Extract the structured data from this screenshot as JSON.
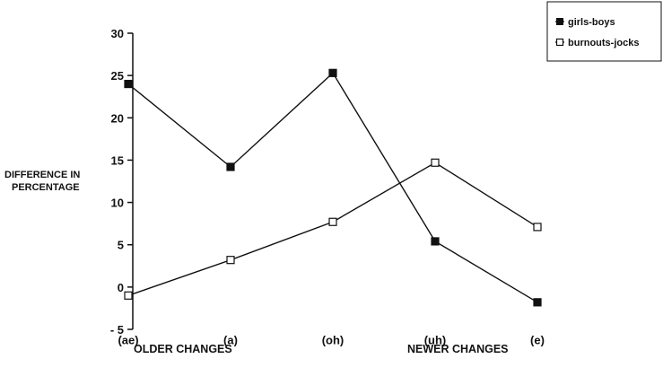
{
  "chart_data": {
    "type": "line",
    "categories": [
      "(ae)",
      "(a)",
      "(oh)",
      "(uh)",
      "(e)"
    ],
    "series": [
      {
        "name": "girls-boys",
        "marker": "filled-square",
        "values": [
          24,
          14.2,
          25.3,
          5.4,
          -1.8
        ]
      },
      {
        "name": "burnouts-jocks",
        "marker": "open-square",
        "values": [
          -1,
          3.2,
          7.7,
          14.7,
          7.1
        ]
      }
    ],
    "ylabel_lines": [
      "DIFFERENCE IN",
      "PERCENTAGE"
    ],
    "ylim": [
      -5,
      30
    ],
    "yticks": [
      "30",
      "25",
      "20",
      "15",
      "10",
      "5",
      "0",
      "- 5"
    ],
    "ytick_values": [
      30,
      25,
      20,
      15,
      10,
      5,
      0,
      -5
    ],
    "group_labels": [
      "OLDER CHANGES",
      "NEWER CHANGES"
    ],
    "legend_position": "top-right",
    "grid": false,
    "line_color": "#111111"
  }
}
